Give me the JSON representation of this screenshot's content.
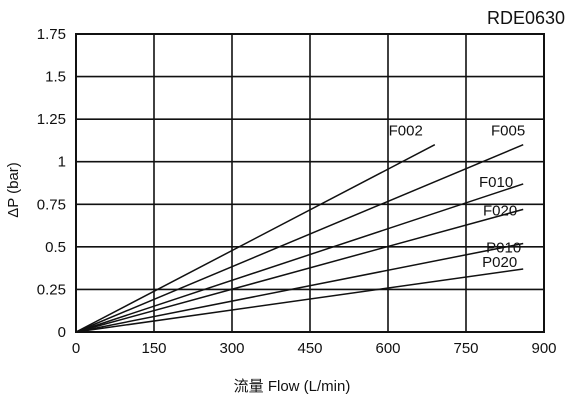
{
  "chart_data": {
    "type": "line",
    "title": "RDE0630",
    "xlabel": "流量 Flow (L/min)",
    "ylabel": "ΔP (bar)",
    "xlim": [
      0,
      900
    ],
    "ylim": [
      0,
      1.75
    ],
    "x_ticks": [
      "0",
      "150",
      "300",
      "450",
      "600",
      "750",
      "900"
    ],
    "x_tick_values": [
      0,
      150,
      300,
      450,
      600,
      750,
      900
    ],
    "y_ticks": [
      "0",
      "0.25",
      "0.5",
      "0.75",
      "1",
      "1.25",
      "1.5",
      "1.75"
    ],
    "y_tick_values": [
      0,
      0.25,
      0.5,
      0.75,
      1,
      1.25,
      1.5,
      1.75
    ],
    "grid": true,
    "series": [
      {
        "name": "F002",
        "x": [
          0,
          690
        ],
        "y": [
          0,
          1.1
        ]
      },
      {
        "name": "F005",
        "x": [
          0,
          860
        ],
        "y": [
          0,
          1.1
        ]
      },
      {
        "name": "F010",
        "x": [
          0,
          860
        ],
        "y": [
          0,
          0.87
        ]
      },
      {
        "name": "F020",
        "x": [
          0,
          860
        ],
        "y": [
          0,
          0.72
        ]
      },
      {
        "name": "P010",
        "x": [
          0,
          860
        ],
        "y": [
          0,
          0.52
        ]
      },
      {
        "name": "P020",
        "x": [
          0,
          860
        ],
        "y": [
          0,
          0.37
        ]
      }
    ]
  }
}
